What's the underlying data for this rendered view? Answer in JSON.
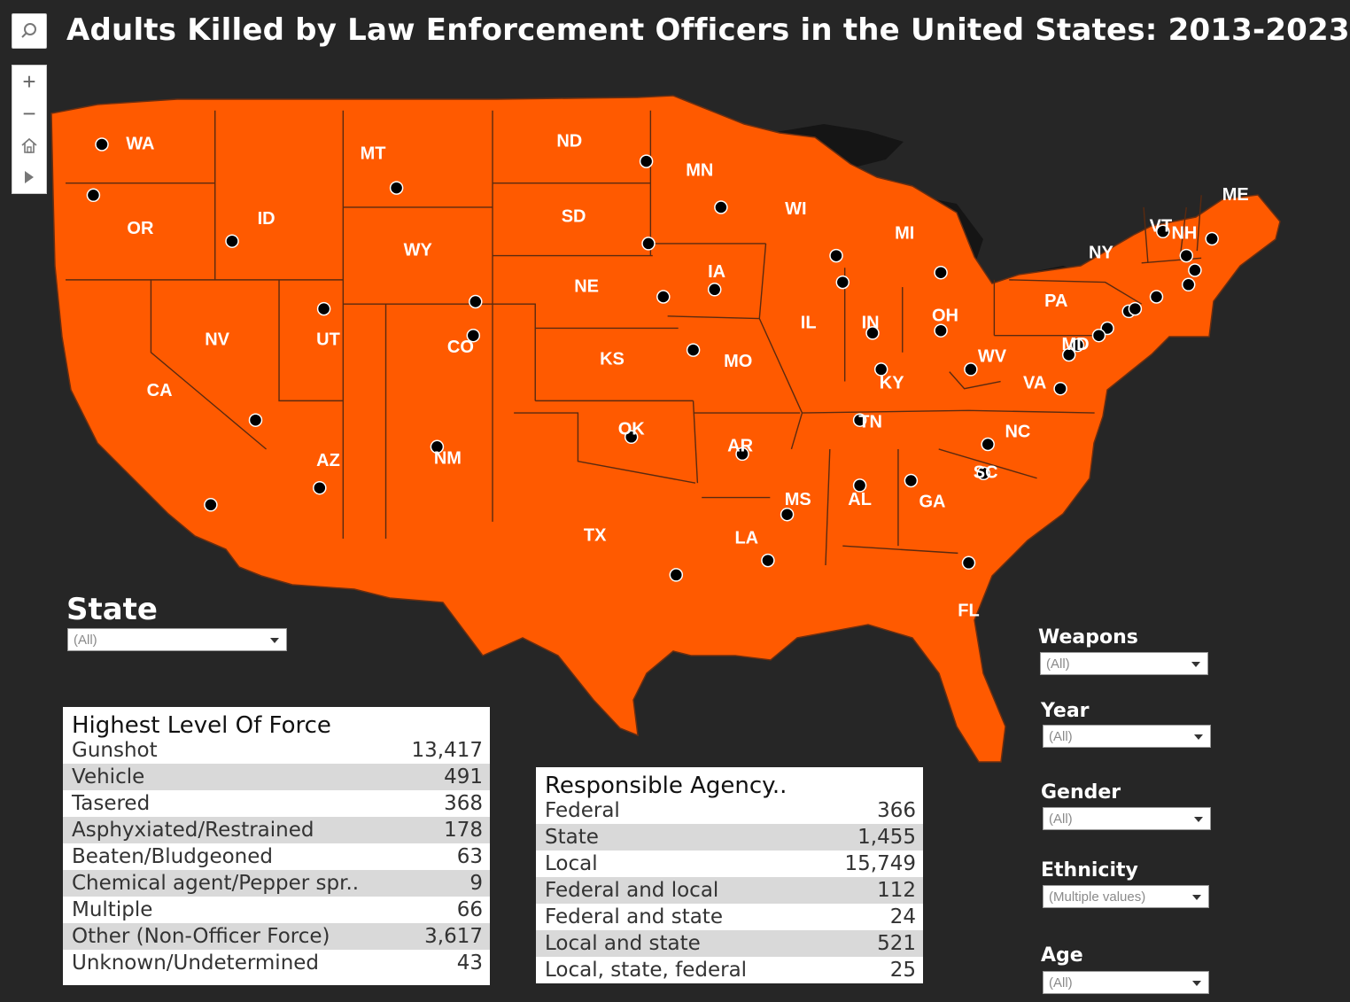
{
  "title": "Adults Killed by Law Enforcement Officers in the United States: 2013-2023",
  "colors": {
    "background": "#262626",
    "land": "#2e2e2e",
    "water": "#1f1f1f",
    "state_fill": "#ff5a00",
    "state_border": "#555555",
    "dot": "#000000"
  },
  "map_controls": {
    "search": "search-icon",
    "zoom_in": "+",
    "zoom_out": "−",
    "home": "home-icon",
    "play": "play-icon"
  },
  "states": [
    {
      "abbr": "WA",
      "lon": -120.5,
      "lat": 47.4
    },
    {
      "abbr": "OR",
      "lon": -120.5,
      "lat": 43.9
    },
    {
      "abbr": "CA",
      "lon": -119.6,
      "lat": 37.2
    },
    {
      "abbr": "NV",
      "lon": -116.9,
      "lat": 39.3
    },
    {
      "abbr": "ID",
      "lon": -114.6,
      "lat": 44.3
    },
    {
      "abbr": "MT",
      "lon": -109.6,
      "lat": 47.0
    },
    {
      "abbr": "WY",
      "lon": -107.5,
      "lat": 43.0
    },
    {
      "abbr": "UT",
      "lon": -111.7,
      "lat": 39.3
    },
    {
      "abbr": "AZ",
      "lon": -111.7,
      "lat": 34.3
    },
    {
      "abbr": "CO",
      "lon": -105.5,
      "lat": 39.0
    },
    {
      "abbr": "NM",
      "lon": -106.1,
      "lat": 34.4
    },
    {
      "abbr": "ND",
      "lon": -100.4,
      "lat": 47.5
    },
    {
      "abbr": "SD",
      "lon": -100.2,
      "lat": 44.4
    },
    {
      "abbr": "NE",
      "lon": -99.6,
      "lat": 41.5
    },
    {
      "abbr": "KS",
      "lon": -98.4,
      "lat": 38.5
    },
    {
      "abbr": "OK",
      "lon": -97.5,
      "lat": 35.6
    },
    {
      "abbr": "TX",
      "lon": -99.2,
      "lat": 31.2
    },
    {
      "abbr": "MN",
      "lon": -94.3,
      "lat": 46.3
    },
    {
      "abbr": "IA",
      "lon": -93.5,
      "lat": 42.1
    },
    {
      "abbr": "MO",
      "lon": -92.5,
      "lat": 38.4
    },
    {
      "abbr": "AR",
      "lon": -92.4,
      "lat": 34.9
    },
    {
      "abbr": "LA",
      "lon": -92.1,
      "lat": 31.1
    },
    {
      "abbr": "WI",
      "lon": -89.8,
      "lat": 44.7
    },
    {
      "abbr": "IL",
      "lon": -89.2,
      "lat": 40.0
    },
    {
      "abbr": "MI",
      "lon": -84.7,
      "lat": 43.7
    },
    {
      "abbr": "IN",
      "lon": -86.3,
      "lat": 40.0
    },
    {
      "abbr": "OH",
      "lon": -82.8,
      "lat": 40.3
    },
    {
      "abbr": "KY",
      "lon": -85.3,
      "lat": 37.5
    },
    {
      "abbr": "TN",
      "lon": -86.3,
      "lat": 35.9
    },
    {
      "abbr": "MS",
      "lon": -89.7,
      "lat": 32.7
    },
    {
      "abbr": "AL",
      "lon": -86.8,
      "lat": 32.7
    },
    {
      "abbr": "GA",
      "lon": -83.4,
      "lat": 32.6
    },
    {
      "abbr": "FL",
      "lon": -81.7,
      "lat": 28.1
    },
    {
      "abbr": "SC",
      "lon": -80.9,
      "lat": 33.8
    },
    {
      "abbr": "NC",
      "lon": -79.4,
      "lat": 35.5
    },
    {
      "abbr": "VA",
      "lon": -78.6,
      "lat": 37.5
    },
    {
      "abbr": "WV",
      "lon": -80.6,
      "lat": 38.6
    },
    {
      "abbr": "PA",
      "lon": -77.6,
      "lat": 40.9
    },
    {
      "abbr": "NY",
      "lon": -75.5,
      "lat": 42.9
    },
    {
      "abbr": "MD",
      "lon": -76.7,
      "lat": 39.1
    },
    {
      "abbr": "VT",
      "lon": -72.7,
      "lat": 44.0
    },
    {
      "abbr": "NH",
      "lon": -71.6,
      "lat": 43.7
    },
    {
      "abbr": "ME",
      "lon": -69.2,
      "lat": 45.3
    }
  ],
  "dots": [
    [
      -122.3,
      47.6
    ],
    [
      -122.7,
      45.5
    ],
    [
      -116.2,
      43.6
    ],
    [
      -104.8,
      41.1
    ],
    [
      -108.5,
      45.8
    ],
    [
      -111.9,
      40.8
    ],
    [
      -115.1,
      36.2
    ],
    [
      -117.2,
      32.7
    ],
    [
      -112.1,
      33.4
    ],
    [
      -104.9,
      39.7
    ],
    [
      -106.6,
      35.1
    ],
    [
      -96.8,
      46.9
    ],
    [
      -96.7,
      43.5
    ],
    [
      -96.0,
      41.3
    ],
    [
      -94.6,
      39.1
    ],
    [
      -97.5,
      35.5
    ],
    [
      -95.4,
      29.8
    ],
    [
      -93.3,
      45.0
    ],
    [
      -93.6,
      41.6
    ],
    [
      -92.3,
      34.8
    ],
    [
      -91.1,
      30.4
    ],
    [
      -90.2,
      32.3
    ],
    [
      -86.8,
      33.5
    ],
    [
      -84.4,
      33.7
    ],
    [
      -81.7,
      30.3
    ],
    [
      -81.0,
      34.0
    ],
    [
      -80.8,
      35.2
    ],
    [
      -77.4,
      37.5
    ],
    [
      -81.6,
      38.3
    ],
    [
      -85.8,
      38.3
    ],
    [
      -86.8,
      36.2
    ],
    [
      -86.2,
      39.8
    ],
    [
      -83.0,
      39.9
    ],
    [
      -83.0,
      42.3
    ],
    [
      -87.6,
      41.9
    ],
    [
      -87.9,
      43.0
    ],
    [
      -75.2,
      40.0
    ],
    [
      -76.6,
      39.3
    ],
    [
      -74.2,
      40.7
    ],
    [
      -73.9,
      40.8
    ],
    [
      -72.9,
      41.3
    ],
    [
      -71.4,
      41.8
    ],
    [
      -71.1,
      42.4
    ],
    [
      -71.5,
      43.0
    ],
    [
      -72.6,
      44.0
    ],
    [
      -70.3,
      43.7
    ],
    [
      -77.0,
      38.9
    ],
    [
      -75.6,
      39.7
    ]
  ],
  "state_filter": {
    "title": "State",
    "value": "(All)"
  },
  "filters": [
    {
      "label": "Weapons",
      "value": "(All)"
    },
    {
      "label": "Year",
      "value": "(All)"
    },
    {
      "label": "Gender",
      "value": "(All)"
    },
    {
      "label": "Ethnicity",
      "value": "(Multiple values)"
    },
    {
      "label": "Age",
      "value": "(All)"
    }
  ],
  "force_table": {
    "title": "Highest Level Of Force",
    "rows": [
      {
        "label": "Gunshot",
        "value": "13,417"
      },
      {
        "label": "Vehicle",
        "value": "491"
      },
      {
        "label": "Tasered",
        "value": "368"
      },
      {
        "label": "Asphyxiated/Restrained",
        "value": "178"
      },
      {
        "label": "Beaten/Bludgeoned",
        "value": "63"
      },
      {
        "label": "Chemical agent/Pepper spr..",
        "value": "9"
      },
      {
        "label": "Multiple",
        "value": "66"
      },
      {
        "label": "Other (Non-Officer Force)",
        "value": "3,617"
      },
      {
        "label": "Unknown/Undetermined",
        "value": "43"
      }
    ]
  },
  "agency_table": {
    "title": "Responsible Agency..",
    "rows": [
      {
        "label": "Federal",
        "value": "366"
      },
      {
        "label": "State",
        "value": "1,455"
      },
      {
        "label": "Local",
        "value": "15,749"
      },
      {
        "label": "Federal and local",
        "value": "112"
      },
      {
        "label": "Federal and state",
        "value": "24"
      },
      {
        "label": "Local and state",
        "value": "521"
      },
      {
        "label": "Local, state, federal",
        "value": "25"
      }
    ]
  }
}
